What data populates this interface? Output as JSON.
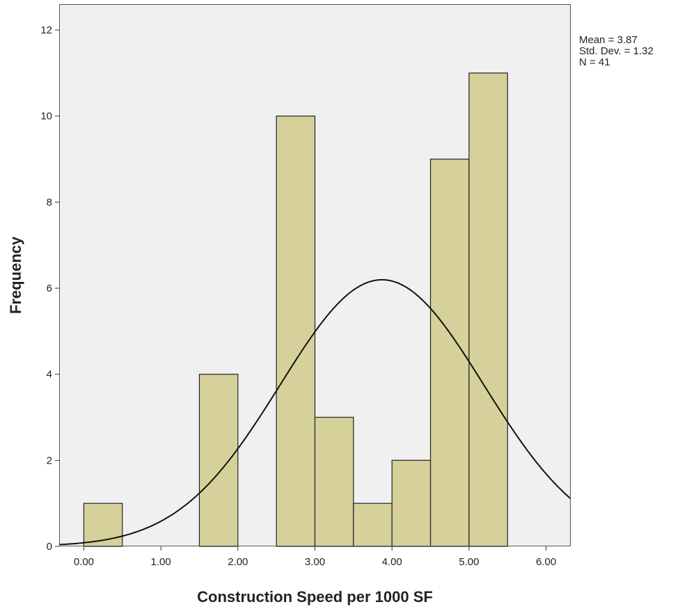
{
  "chart_data": {
    "type": "bar",
    "subtype": "histogram",
    "xlabel": "Construction Speed per 1000 SF",
    "ylabel": "Frequency",
    "xlim": [
      -0.32,
      6.32
    ],
    "ylim": [
      0,
      12.6
    ],
    "x_ticks": [
      0,
      1,
      2,
      3,
      4,
      5,
      6
    ],
    "x_tick_labels": [
      "0.00",
      "1.00",
      "2.00",
      "3.00",
      "4.00",
      "5.00",
      "6.00"
    ],
    "y_ticks": [
      0,
      2,
      4,
      6,
      8,
      10,
      12
    ],
    "y_tick_labels": [
      "0",
      "2",
      "4",
      "6",
      "8",
      "10",
      "12"
    ],
    "bins": [
      {
        "start": 0.0,
        "end": 0.5,
        "count": 1
      },
      {
        "start": 1.5,
        "end": 2.0,
        "count": 4
      },
      {
        "start": 2.5,
        "end": 3.0,
        "count": 10
      },
      {
        "start": 3.0,
        "end": 3.5,
        "count": 3
      },
      {
        "start": 3.5,
        "end": 4.0,
        "count": 1
      },
      {
        "start": 4.0,
        "end": 4.5,
        "count": 2
      },
      {
        "start": 4.5,
        "end": 5.0,
        "count": 9
      },
      {
        "start": 5.0,
        "end": 5.5,
        "count": 11
      }
    ],
    "bin_width": 0.5,
    "normal_curve": {
      "mean": 3.87,
      "sd": 1.32,
      "n": 41
    },
    "stats_text": [
      "Mean = 3.87",
      "Std. Dev. = 1.32",
      "N = 41"
    ],
    "legend_position": "top-right",
    "grid": false,
    "colors": {
      "bar_fill": "#d6d09b",
      "bar_stroke": "#222222",
      "plot_background": "#f0f0f0",
      "curve": "#111111"
    }
  }
}
